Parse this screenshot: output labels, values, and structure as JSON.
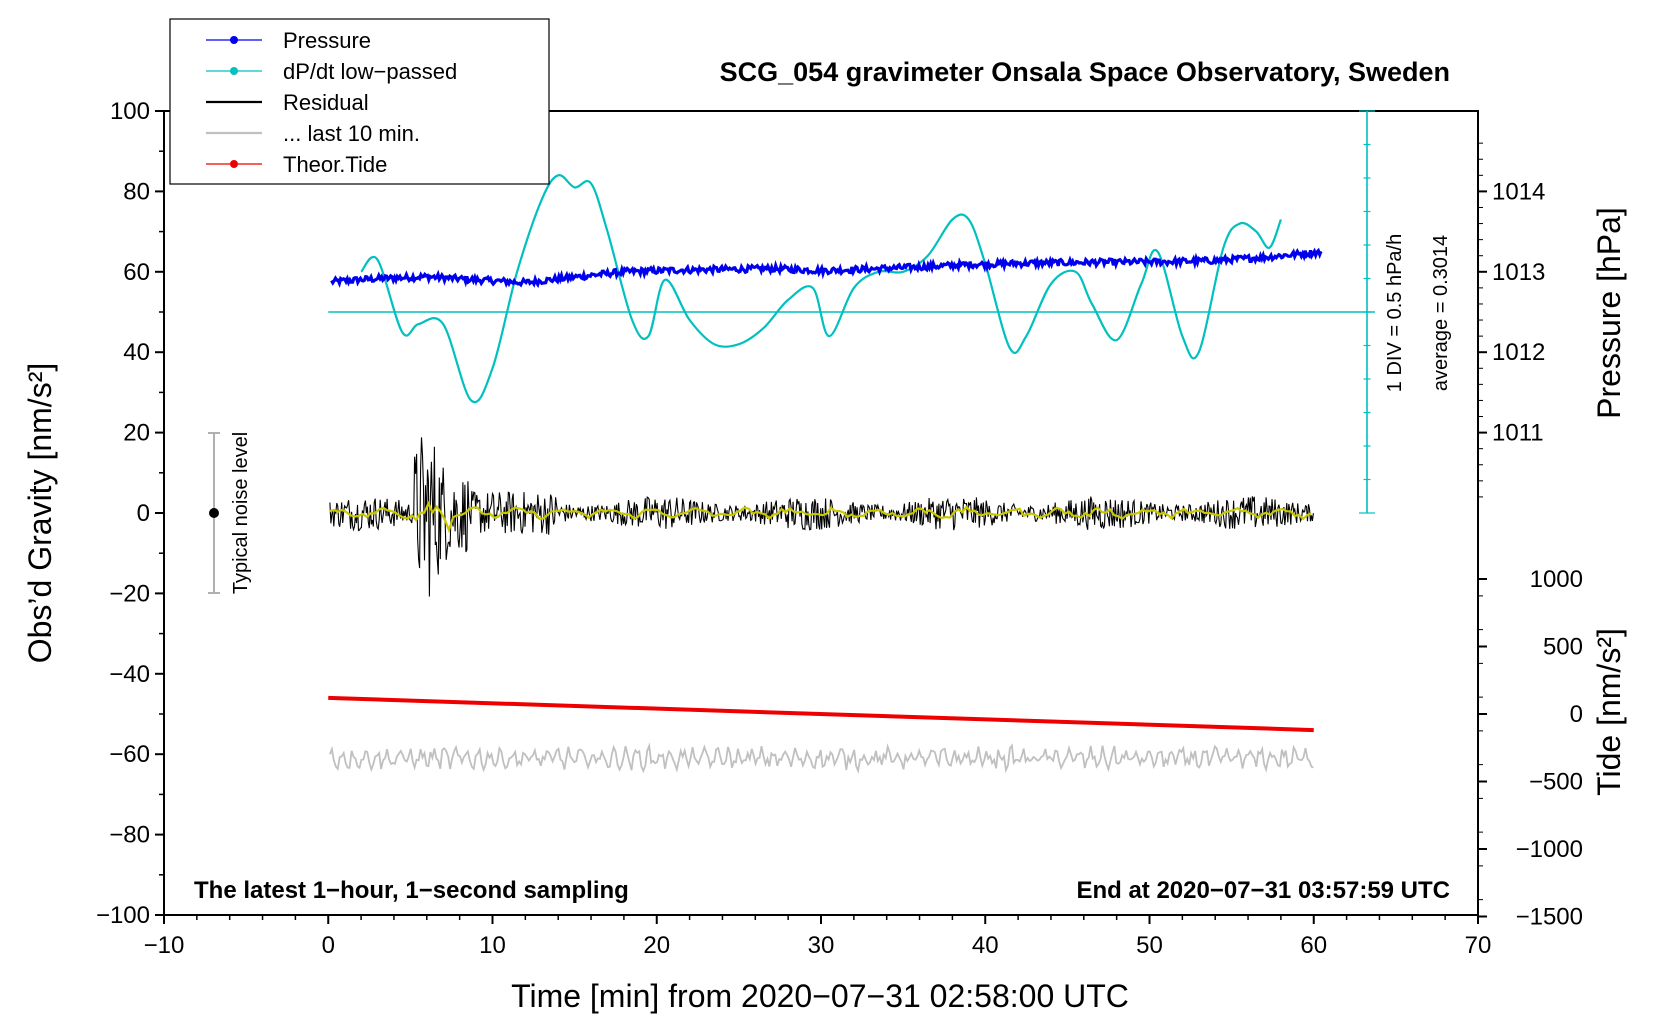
{
  "chart_data": {
    "type": "line",
    "title": "SCG_054 gravimeter Onsala Space Observatory, Sweden",
    "xlabel": "Time [min] from 2020−07−31 02:58:00 UTC",
    "ylabel_left": "Obs’d Gravity [nm/s²]",
    "ylabel_right_pressure": "Pressure [hPa]",
    "ylabel_right_tide": "Tide [nm/s²]",
    "xlim": [
      -10,
      70
    ],
    "ylim": [
      -100,
      100
    ],
    "x_ticks": [
      "−10",
      "0",
      "10",
      "20",
      "30",
      "40",
      "50",
      "60",
      "70"
    ],
    "y_ticks": [
      "100",
      "80",
      "60",
      "40",
      "20",
      "0",
      "−20",
      "−40",
      "−60",
      "−80",
      "−100"
    ],
    "pressure_ticks": [
      "1014",
      "1013",
      "1012",
      "1011"
    ],
    "tide_ticks": [
      "1000",
      "500",
      "0",
      "−500",
      "−1000",
      "−1500"
    ],
    "note_left": "The latest 1−hour, 1−second sampling",
    "note_right": "End at 2020−07−31 03:57:59 UTC",
    "noise_label": "Typical noise level",
    "div_label": "1 DIV = 0.5 hPa/h",
    "average_label": "average = 0.3014",
    "legend": [
      {
        "label": "Pressure",
        "color": "#0000ee",
        "marker": true
      },
      {
        "label": "dP/dt low−passed",
        "color": "#00c0c0",
        "marker": true
      },
      {
        "label": "Residual",
        "color": "#000000",
        "marker": false
      },
      {
        "label": "... last 10 min.",
        "color": "#c0c0c0",
        "marker": false
      },
      {
        "label": "Theor.Tide",
        "color": "#ee0000",
        "marker": true
      }
    ],
    "series": {
      "pressure": {
        "name": "Pressure",
        "color": "#0000ee",
        "x": [
          0,
          3,
          6,
          9,
          12,
          15,
          18,
          21,
          24,
          27,
          30,
          33,
          36,
          39,
          42,
          45,
          48,
          51,
          54,
          57,
          60
        ],
        "y": [
          57.5,
          58.3,
          58.8,
          58.0,
          57.3,
          58.7,
          60.0,
          60.4,
          60.6,
          60.8,
          60.3,
          60.7,
          61.2,
          61.8,
          62.1,
          62.3,
          62.4,
          62.5,
          62.8,
          63.6,
          64.8
        ]
      },
      "dpdt": {
        "name": "dP/dt low−passed",
        "color": "#00c0c0",
        "x": [
          2,
          3,
          4.5,
          5.5,
          7,
          8.7,
          10,
          11.5,
          13,
          14,
          15,
          16,
          17,
          18.5,
          19.5,
          20.5,
          22,
          23.5,
          25,
          26.5,
          28,
          29.5,
          30.5,
          32,
          33.5,
          35,
          36.5,
          38,
          39,
          40,
          41.5,
          42.5,
          44,
          45.5,
          46.5,
          48,
          49.5,
          50.5,
          52,
          53,
          54.5,
          55.5,
          56.5,
          57.3,
          58
        ],
        "y": [
          60,
          63,
          45,
          47,
          47,
          28,
          36,
          60,
          78,
          84,
          81,
          82,
          70,
          48,
          44,
          58,
          48,
          42,
          42,
          46,
          53,
          56,
          44,
          56,
          60,
          60,
          64,
          73,
          73,
          62,
          41,
          44,
          57,
          60,
          52,
          43,
          57,
          65,
          44,
          40,
          66,
          72,
          70,
          66,
          73
        ]
      },
      "residual_mean": {
        "name": "Residual (smoothed)",
        "color": "#c8c800",
        "value": 0
      },
      "last10": {
        "name": "... last 10 min.",
        "color": "#c0c0c0",
        "baseline": -61
      },
      "tide": {
        "name": "Theor.Tide",
        "color": "#ee0000",
        "x": [
          0,
          60
        ],
        "y": [
          -46,
          -54
        ]
      }
    },
    "reference_line_y": 50
  }
}
